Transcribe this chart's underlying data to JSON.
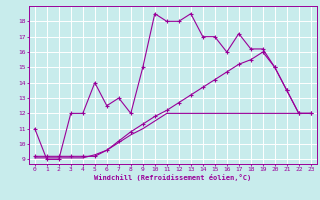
{
  "xlabel": "Windchill (Refroidissement éolien,°C)",
  "bg_color": "#c8ecec",
  "line_color": "#990099",
  "grid_color": "#ffffff",
  "xlim": [
    -0.5,
    23.5
  ],
  "ylim": [
    8.7,
    19.0
  ],
  "yticks": [
    9,
    10,
    11,
    12,
    13,
    14,
    15,
    16,
    17,
    18
  ],
  "xticks": [
    0,
    1,
    2,
    3,
    4,
    5,
    6,
    7,
    8,
    9,
    10,
    11,
    12,
    13,
    14,
    15,
    16,
    17,
    18,
    19,
    20,
    21,
    22,
    23
  ],
  "line1_x": [
    0,
    1,
    2,
    3,
    4,
    5,
    6,
    7,
    8,
    9,
    10,
    11,
    12,
    13,
    14,
    15,
    16,
    17,
    18,
    19,
    20,
    21,
    22,
    23
  ],
  "line1_y": [
    11,
    9,
    9,
    12,
    12,
    14,
    12.5,
    13,
    12,
    15,
    18.5,
    18,
    18,
    18.5,
    17,
    17,
    16,
    17.2,
    16.2,
    16.2,
    15,
    13.5,
    12,
    12
  ],
  "line2_x": [
    0,
    1,
    2,
    3,
    4,
    5,
    6,
    7,
    8,
    9,
    10,
    11,
    12,
    13,
    14,
    15,
    16,
    17,
    18,
    19,
    20,
    21,
    22,
    23
  ],
  "line2_y": [
    9.2,
    9.2,
    9.2,
    9.2,
    9.2,
    9.2,
    9.6,
    10.2,
    10.8,
    11.3,
    11.8,
    12.2,
    12.7,
    13.2,
    13.7,
    14.2,
    14.7,
    15.2,
    15.5,
    16.0,
    15.0,
    13.5,
    12.0,
    12.0
  ],
  "line3_x": [
    0,
    1,
    2,
    3,
    4,
    5,
    6,
    7,
    8,
    9,
    10,
    11,
    12,
    13,
    14,
    15,
    16,
    17,
    18,
    19,
    20,
    21,
    22,
    23
  ],
  "line3_y": [
    9.1,
    9.1,
    9.1,
    9.1,
    9.1,
    9.3,
    9.6,
    10.1,
    10.6,
    11.0,
    11.5,
    12.0,
    12.0,
    12.0,
    12.0,
    12.0,
    12.0,
    12.0,
    12.0,
    12.0,
    12.0,
    12.0,
    12.0,
    12.0
  ]
}
